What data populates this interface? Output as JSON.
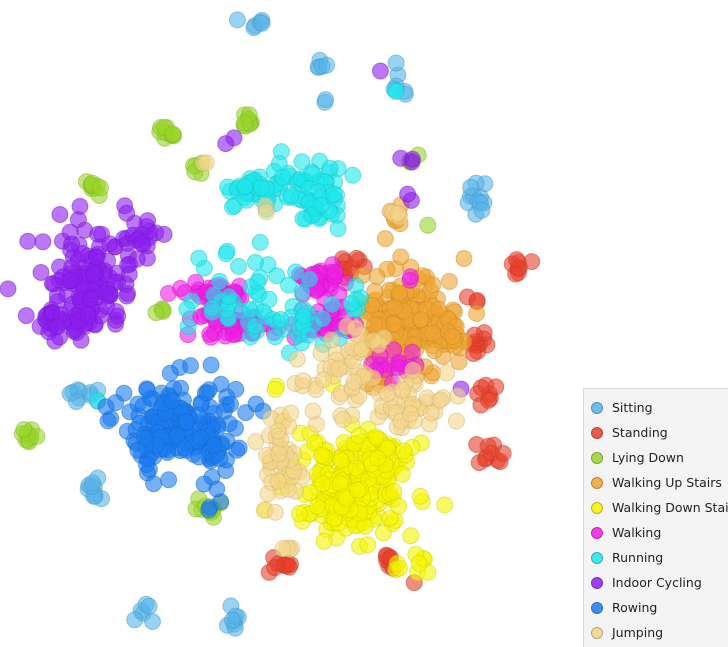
{
  "chart_data": {
    "type": "scatter",
    "title": "",
    "xlabel": "",
    "ylabel": "",
    "grid": false,
    "axes_visible": false,
    "legend_position": "bottom-right",
    "series": [
      {
        "name": "Sitting",
        "color": "#56b4e9",
        "clusters": [
          {
            "x": 258,
            "y": 22,
            "sx": 10,
            "sy": 4,
            "n": 6
          },
          {
            "x": 323,
            "y": 66,
            "sx": 4,
            "sy": 4,
            "n": 5
          },
          {
            "x": 323,
            "y": 101,
            "sx": 3,
            "sy": 2,
            "n": 2
          },
          {
            "x": 398,
            "y": 84,
            "sx": 6,
            "sy": 8,
            "n": 6
          },
          {
            "x": 478,
            "y": 198,
            "sx": 6,
            "sy": 8,
            "n": 12
          },
          {
            "x": 86,
            "y": 394,
            "sx": 8,
            "sy": 5,
            "n": 10
          },
          {
            "x": 95,
            "y": 490,
            "sx": 4,
            "sy": 6,
            "n": 10
          },
          {
            "x": 145,
            "y": 611,
            "sx": 5,
            "sy": 7,
            "n": 6
          },
          {
            "x": 231,
            "y": 618,
            "sx": 5,
            "sy": 8,
            "n": 8
          }
        ]
      },
      {
        "name": "Standing",
        "color": "#e8412b",
        "clusters": [
          {
            "x": 350,
            "y": 265,
            "sx": 8,
            "sy": 5,
            "n": 10
          },
          {
            "x": 519,
            "y": 265,
            "sx": 6,
            "sy": 6,
            "n": 8
          },
          {
            "x": 470,
            "y": 302,
            "sx": 6,
            "sy": 4,
            "n": 3
          },
          {
            "x": 478,
            "y": 338,
            "sx": 6,
            "sy": 8,
            "n": 10
          },
          {
            "x": 488,
            "y": 392,
            "sx": 6,
            "sy": 6,
            "n": 8
          },
          {
            "x": 490,
            "y": 455,
            "sx": 7,
            "sy": 7,
            "n": 10
          },
          {
            "x": 283,
            "y": 566,
            "sx": 6,
            "sy": 6,
            "n": 10
          },
          {
            "x": 384,
            "y": 561,
            "sx": 6,
            "sy": 5,
            "n": 8
          },
          {
            "x": 414,
            "y": 586,
            "sx": 2,
            "sy": 2,
            "n": 1
          },
          {
            "x": 382,
            "y": 378,
            "sx": 6,
            "sy": 6,
            "n": 4
          }
        ]
      },
      {
        "name": "Lying Down",
        "color": "#9ad62a",
        "clusters": [
          {
            "x": 166,
            "y": 133,
            "sx": 6,
            "sy": 5,
            "n": 10
          },
          {
            "x": 250,
            "y": 121,
            "sx": 6,
            "sy": 5,
            "n": 10
          },
          {
            "x": 200,
            "y": 170,
            "sx": 3,
            "sy": 5,
            "n": 5
          },
          {
            "x": 92,
            "y": 188,
            "sx": 5,
            "sy": 5,
            "n": 10
          },
          {
            "x": 163,
            "y": 308,
            "sx": 2,
            "sy": 4,
            "n": 4
          },
          {
            "x": 28,
            "y": 438,
            "sx": 4,
            "sy": 4,
            "n": 10
          },
          {
            "x": 207,
            "y": 508,
            "sx": 8,
            "sy": 4,
            "n": 10
          },
          {
            "x": 410,
            "y": 163,
            "sx": 3,
            "sy": 4,
            "n": 3
          },
          {
            "x": 429,
            "y": 224,
            "sx": 2,
            "sy": 2,
            "n": 1
          }
        ]
      },
      {
        "name": "Walking Up Stairs",
        "color": "#f0a530",
        "clusters": [
          {
            "x": 410,
            "y": 320,
            "sx": 24,
            "sy": 24,
            "n": 150
          },
          {
            "x": 380,
            "y": 330,
            "sx": 14,
            "sy": 10,
            "n": 20
          },
          {
            "x": 400,
            "y": 215,
            "sx": 8,
            "sy": 7,
            "n": 8
          },
          {
            "x": 375,
            "y": 375,
            "sx": 8,
            "sy": 6,
            "n": 12
          },
          {
            "x": 448,
            "y": 330,
            "sx": 10,
            "sy": 14,
            "n": 20
          }
        ]
      },
      {
        "name": "Walking Down Stairs",
        "color": "#f5f500",
        "clusters": [
          {
            "x": 350,
            "y": 485,
            "sx": 30,
            "sy": 25,
            "n": 210
          },
          {
            "x": 380,
            "y": 455,
            "sx": 15,
            "sy": 12,
            "n": 30
          },
          {
            "x": 277,
            "y": 390,
            "sx": 3,
            "sy": 3,
            "n": 2
          },
          {
            "x": 422,
            "y": 565,
            "sx": 5,
            "sy": 8,
            "n": 6
          },
          {
            "x": 398,
            "y": 572,
            "sx": 4,
            "sy": 3,
            "n": 3
          }
        ]
      },
      {
        "name": "Walking",
        "color": "#f01ee6",
        "clusters": [
          {
            "x": 215,
            "y": 292,
            "sx": 16,
            "sy": 6,
            "n": 35
          },
          {
            "x": 235,
            "y": 327,
            "sx": 18,
            "sy": 7,
            "n": 40
          },
          {
            "x": 315,
            "y": 280,
            "sx": 15,
            "sy": 8,
            "n": 30
          },
          {
            "x": 320,
            "y": 322,
            "sx": 15,
            "sy": 8,
            "n": 35
          },
          {
            "x": 395,
            "y": 365,
            "sx": 12,
            "sy": 10,
            "n": 15
          },
          {
            "x": 408,
            "y": 276,
            "sx": 3,
            "sy": 3,
            "n": 2
          }
        ]
      },
      {
        "name": "Running",
        "color": "#1ee8ec",
        "clusters": [
          {
            "x": 295,
            "y": 185,
            "sx": 30,
            "sy": 15,
            "n": 55
          },
          {
            "x": 255,
            "y": 185,
            "sx": 12,
            "sy": 8,
            "n": 25
          },
          {
            "x": 318,
            "y": 208,
            "sx": 12,
            "sy": 10,
            "n": 25
          },
          {
            "x": 245,
            "y": 300,
            "sx": 30,
            "sy": 22,
            "n": 45
          },
          {
            "x": 300,
            "y": 320,
            "sx": 15,
            "sy": 15,
            "n": 20
          },
          {
            "x": 355,
            "y": 305,
            "sx": 6,
            "sy": 8,
            "n": 6
          },
          {
            "x": 395,
            "y": 93,
            "sx": 3,
            "sy": 3,
            "n": 2
          },
          {
            "x": 98,
            "y": 400,
            "sx": 2,
            "sy": 2,
            "n": 1
          }
        ]
      },
      {
        "name": "Indoor Cycling",
        "color": "#8c1ef0",
        "clusters": [
          {
            "x": 90,
            "y": 285,
            "sx": 22,
            "sy": 25,
            "n": 130
          },
          {
            "x": 140,
            "y": 235,
            "sx": 12,
            "sy": 10,
            "n": 20
          },
          {
            "x": 55,
            "y": 318,
            "sx": 12,
            "sy": 10,
            "n": 20
          },
          {
            "x": 378,
            "y": 70,
            "sx": 2,
            "sy": 2,
            "n": 1
          },
          {
            "x": 235,
            "y": 145,
            "sx": 10,
            "sy": 3,
            "n": 2
          },
          {
            "x": 406,
            "y": 160,
            "sx": 4,
            "sy": 3,
            "n": 3
          },
          {
            "x": 408,
            "y": 196,
            "sx": 3,
            "sy": 3,
            "n": 2
          },
          {
            "x": 462,
            "y": 388,
            "sx": 2,
            "sy": 2,
            "n": 1
          }
        ]
      },
      {
        "name": "Rowing",
        "color": "#1a7cf0",
        "clusters": [
          {
            "x": 180,
            "y": 420,
            "sx": 28,
            "sy": 22,
            "n": 150
          },
          {
            "x": 150,
            "y": 445,
            "sx": 12,
            "sy": 15,
            "n": 20
          },
          {
            "x": 212,
            "y": 450,
            "sx": 12,
            "sy": 10,
            "n": 20
          },
          {
            "x": 213,
            "y": 495,
            "sx": 4,
            "sy": 8,
            "n": 4
          },
          {
            "x": 113,
            "y": 405,
            "sx": 2,
            "sy": 2,
            "n": 1
          }
        ]
      },
      {
        "name": "Jumping",
        "color": "#f5d68a",
        "clusters": [
          {
            "x": 280,
            "y": 460,
            "sx": 10,
            "sy": 20,
            "n": 40
          },
          {
            "x": 345,
            "y": 385,
            "sx": 18,
            "sy": 22,
            "n": 40
          },
          {
            "x": 410,
            "y": 405,
            "sx": 22,
            "sy": 15,
            "n": 40
          },
          {
            "x": 390,
            "y": 210,
            "sx": 5,
            "sy": 6,
            "n": 4
          },
          {
            "x": 355,
            "y": 340,
            "sx": 10,
            "sy": 8,
            "n": 10
          },
          {
            "x": 288,
            "y": 548,
            "sx": 5,
            "sy": 6,
            "n": 4
          },
          {
            "x": 300,
            "y": 385,
            "sx": 6,
            "sy": 4,
            "n": 3
          },
          {
            "x": 263,
            "y": 208,
            "sx": 3,
            "sy": 3,
            "n": 2
          },
          {
            "x": 205,
            "y": 163,
            "sx": 3,
            "sy": 3,
            "n": 2
          }
        ]
      }
    ]
  },
  "legend": {
    "items": [
      {
        "label": "Sitting",
        "color": "#56b4e9"
      },
      {
        "label": "Standing",
        "color": "#e8412b"
      },
      {
        "label": "Lying Down",
        "color": "#9ad62a"
      },
      {
        "label": "Walking Up Stairs",
        "color": "#f0a530"
      },
      {
        "label": "Walking Down Stairs",
        "color": "#f5f500"
      },
      {
        "label": "Walking",
        "color": "#f01ee6"
      },
      {
        "label": "Running",
        "color": "#1ee8ec"
      },
      {
        "label": "Indoor Cycling",
        "color": "#8c1ef0"
      },
      {
        "label": "Rowing",
        "color": "#1a7cf0"
      },
      {
        "label": "Jumping",
        "color": "#f5d68a"
      }
    ]
  }
}
